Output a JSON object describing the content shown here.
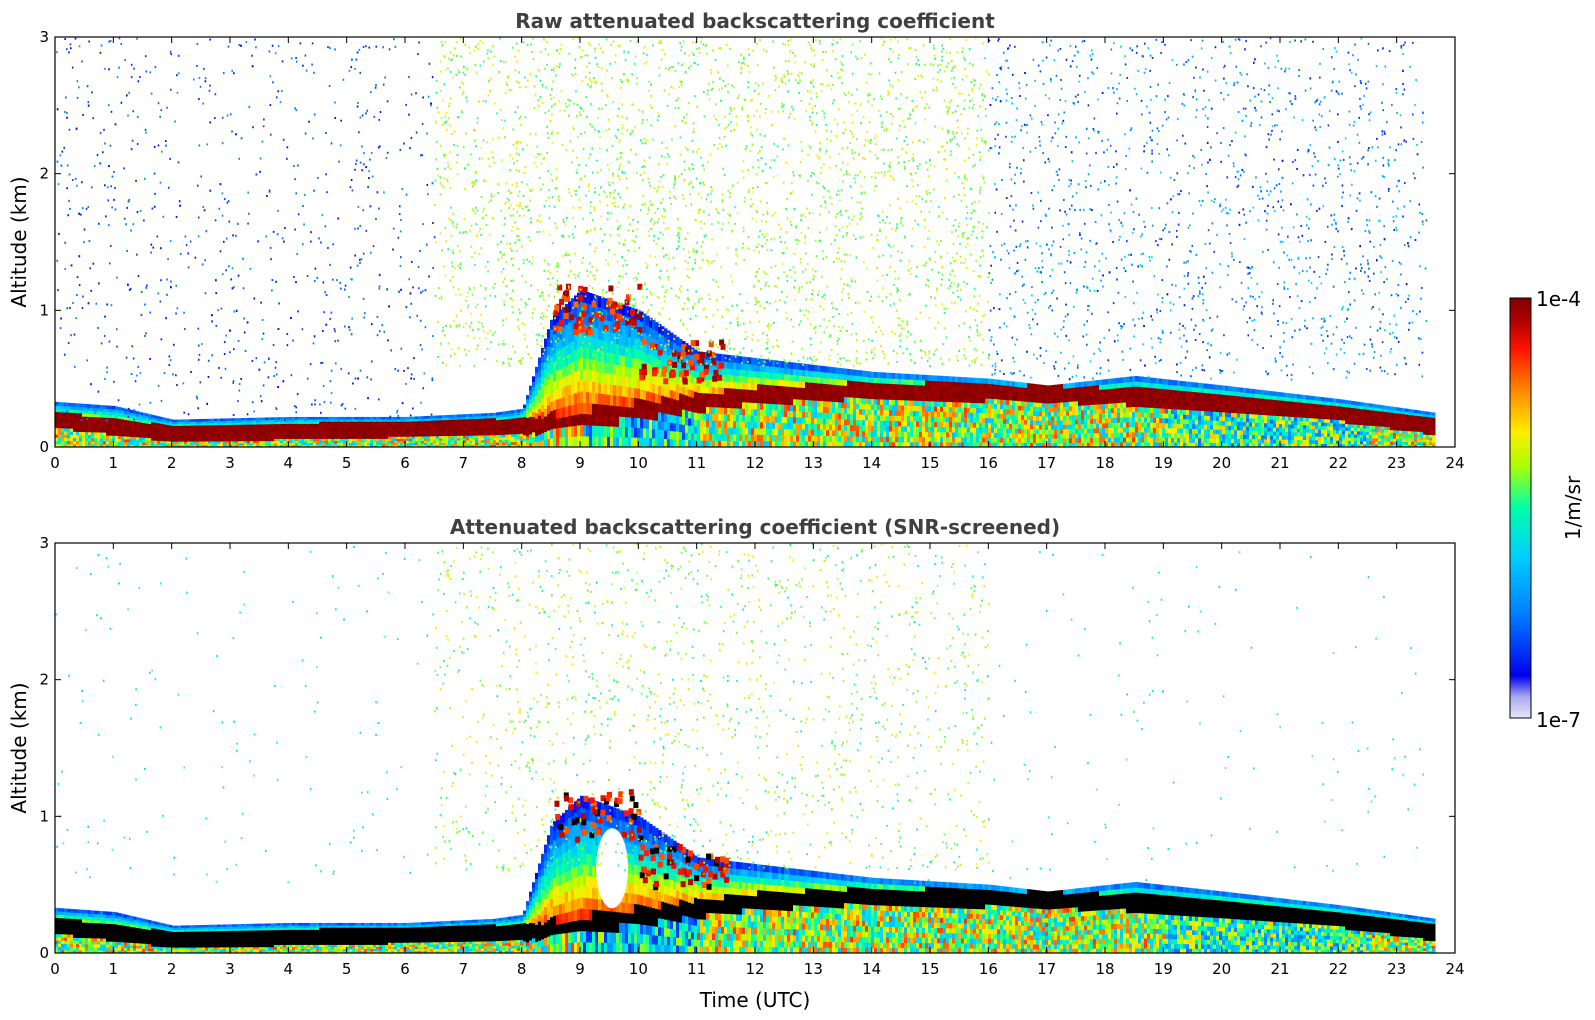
{
  "chart_data": [
    {
      "type": "heatmap",
      "title": "Raw attenuated backscattering coefficient",
      "xlabel": "",
      "ylabel": "Altitude (km)",
      "xlim": [
        0,
        24
      ],
      "ylim": [
        0,
        3
      ],
      "xticks": [
        "0",
        "1",
        "2",
        "3",
        "4",
        "5",
        "6",
        "7",
        "8",
        "9",
        "10",
        "11",
        "12",
        "13",
        "14",
        "15",
        "16",
        "17",
        "18",
        "19",
        "20",
        "21",
        "22",
        "23",
        "24"
      ],
      "yticks": [
        "0",
        "1",
        "2",
        "3"
      ],
      "data_end_time": 23.65,
      "boundary_layer_top_km": [
        {
          "time": 0,
          "top": 0.33
        },
        {
          "time": 1,
          "top": 0.3
        },
        {
          "time": 2,
          "top": 0.2
        },
        {
          "time": 4,
          "top": 0.22
        },
        {
          "time": 6,
          "top": 0.22
        },
        {
          "time": 7.5,
          "top": 0.25
        },
        {
          "time": 8,
          "top": 0.28
        },
        {
          "time": 8.5,
          "top": 0.95
        },
        {
          "time": 9,
          "top": 1.15
        },
        {
          "time": 10,
          "top": 1.0
        },
        {
          "time": 11,
          "top": 0.7
        },
        {
          "time": 13,
          "top": 0.6
        },
        {
          "time": 14,
          "top": 0.55
        },
        {
          "time": 16,
          "top": 0.5
        },
        {
          "time": 17,
          "top": 0.45
        },
        {
          "time": 18.5,
          "top": 0.52
        },
        {
          "time": 20,
          "top": 0.45
        },
        {
          "time": 22,
          "top": 0.35
        },
        {
          "time": 23.65,
          "top": 0.25
        }
      ],
      "high_backscatter_layer_km": [
        {
          "time": 0,
          "altitude": 0.2
        },
        {
          "time": 2,
          "altitude": 0.1
        },
        {
          "time": 8,
          "altitude": 0.15
        },
        {
          "time": 10.5,
          "altitude": 0.3
        },
        {
          "time": 12,
          "altitude": 0.38
        },
        {
          "time": 14,
          "altitude": 0.42
        },
        {
          "time": 16,
          "altitude": 0.4
        },
        {
          "time": 18.5,
          "altitude": 0.37
        },
        {
          "time": 20,
          "altitude": 0.33
        },
        {
          "time": 22,
          "altitude": 0.25
        },
        {
          "time": 23.65,
          "altitude": 0.15
        }
      ],
      "cloud_km": [
        {
          "time_start": 8.5,
          "time_end": 10.0,
          "altitude_bottom": 0.85,
          "altitude_top": 1.2
        },
        {
          "time_start": 10.0,
          "time_end": 11.5,
          "altitude_bottom": 0.5,
          "altitude_top": 0.8
        }
      ]
    },
    {
      "type": "heatmap",
      "title": "Attenuated backscattering coefficient (SNR-screened)",
      "xlabel": "Time (UTC)",
      "ylabel": "Altitude (km)",
      "xlim": [
        0,
        24
      ],
      "ylim": [
        0,
        3
      ],
      "xticks": [
        "0",
        "1",
        "2",
        "3",
        "4",
        "5",
        "6",
        "7",
        "8",
        "9",
        "10",
        "11",
        "12",
        "13",
        "14",
        "15",
        "16",
        "17",
        "18",
        "19",
        "20",
        "21",
        "22",
        "23",
        "24"
      ],
      "yticks": [
        "0",
        "1",
        "2",
        "3"
      ],
      "data_end_time": 23.65,
      "screened_high_values_color": "#000000"
    }
  ],
  "colorbar": {
    "label": "1/m/sr",
    "max_label": "1e-4",
    "min_label": "1e-7",
    "colors": [
      "#e6e6fa",
      "#aaaaee",
      "#0000ee",
      "#0080ff",
      "#00ccff",
      "#00ffaa",
      "#aaff00",
      "#ffee00",
      "#ff8800",
      "#ff1100",
      "#aa0000",
      "#7f0000"
    ]
  }
}
